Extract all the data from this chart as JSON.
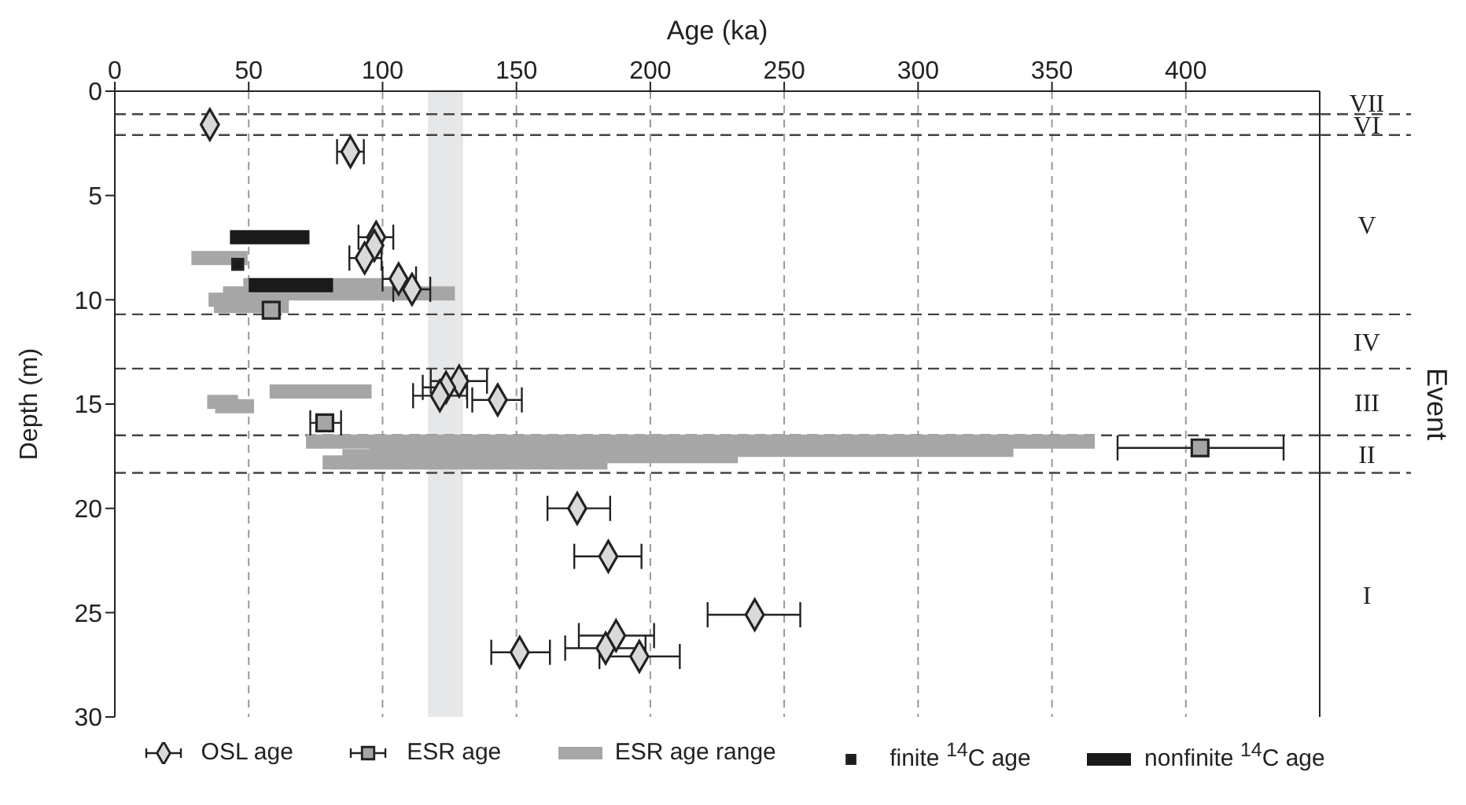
{
  "chart_data": {
    "type": "scatter",
    "xlabel": "Age (ka)",
    "ylabel": "Depth (m)",
    "y2label": "Event",
    "xlim": [
      0,
      450
    ],
    "xticks": [
      0,
      50,
      100,
      150,
      200,
      250,
      300,
      350,
      400
    ],
    "ylim": [
      30,
      0
    ],
    "yticks": [
      0,
      5,
      10,
      15,
      20,
      25,
      30
    ],
    "grid": "x",
    "legend": "bottom",
    "series": [
      {
        "name": "OSL age",
        "marker": "diamond",
        "color": "#d9d9d9",
        "x": [
          35.5,
          88,
          97.6,
          96.9,
          93.3,
          106,
          111,
          128.6,
          123.7,
          121.4,
          143,
          172.7,
          184.3,
          239,
          187.2,
          183.3,
          151.2,
          195.9
        ],
        "values": [
          1.6,
          2.9,
          7.0,
          7.4,
          8.0,
          9.0,
          9.5,
          13.9,
          14.2,
          14.6,
          14.8,
          20.0,
          22.3,
          25.1,
          26.1,
          26.7,
          26.9,
          27.1
        ],
        "xerrors": [
          null,
          [
            83,
            93
          ],
          [
            91,
            104
          ],
          null,
          [
            87.6,
            99.6
          ],
          [
            100,
            112.5
          ],
          [
            104,
            117.8
          ],
          [
            118,
            139
          ],
          [
            115,
            131.5
          ],
          [
            111.4,
            131.6
          ],
          [
            133.5,
            152
          ],
          [
            161.6,
            185
          ],
          [
            171.6,
            196.7
          ],
          [
            221.4,
            256
          ],
          [
            173.3,
            201.4
          ],
          [
            168.2,
            198.2
          ],
          [
            140.6,
            162.5
          ],
          [
            181,
            211
          ]
        ]
      },
      {
        "name": "ESR age",
        "marker": "square",
        "color": "#a6a6a6",
        "x": [
          58.4,
          78.4,
          405.3
        ],
        "values": [
          10.5,
          15.9,
          17.1
        ],
        "xerrors": [
          null,
          [
            73,
            84.5
          ],
          [
            374.5,
            436.5
          ]
        ]
      },
      {
        "name": "ESR age range",
        "type": "line",
        "color": "#a6a6a6",
        "x": [
          28.6,
          49.6
        ],
        "values": [
          8.0,
          8.0
        ]
      },
      {
        "name": "finite $^{14}$C age",
        "marker": "square",
        "color": "#1a1a1a",
        "x": [
          45.9
        ],
        "values": [
          8.3
        ]
      },
      {
        "name": "nonfinite $^{14}$C age",
        "type": "line",
        "color": "#1a1a1a",
        "x": [
          43,
          72.7
        ],
        "values": [
          7.0,
          7.0
        ]
      },
      {
        "type": "line",
        "color": "#a6a6a6",
        "x": [
          48,
          100
        ],
        "values": [
          9.3,
          9.3
        ]
      },
      {
        "type": "line",
        "color": "#a6a6a6",
        "x": [
          40.4,
          127
        ],
        "values": [
          9.7,
          9.7
        ]
      },
      {
        "type": "line",
        "color": "#a6a6a6",
        "x": [
          35,
          63
        ],
        "values": [
          10.0,
          10.0
        ]
      },
      {
        "type": "line",
        "color": "#a6a6a6",
        "x": [
          37,
          65
        ],
        "values": [
          10.3,
          10.3
        ]
      },
      {
        "type": "line",
        "color": "#a6a6a6",
        "x": [
          57.8,
          95.9
        ],
        "values": [
          14.4,
          14.4
        ]
      },
      {
        "type": "line",
        "color": "#a6a6a6",
        "x": [
          34.5,
          46
        ],
        "values": [
          14.9,
          14.9
        ]
      },
      {
        "type": "line",
        "color": "#a6a6a6",
        "x": [
          37.5,
          52
        ],
        "values": [
          15.1,
          15.1
        ]
      },
      {
        "type": "line",
        "color": "#a6a6a6",
        "x": [
          71.4,
          366
        ],
        "values": [
          16.8,
          16.8
        ]
      },
      {
        "type": "line",
        "color": "#a6a6a6",
        "x": [
          95,
          335.6
        ],
        "values": [
          17.2,
          17.2
        ]
      },
      {
        "type": "line",
        "color": "#a6a6a6",
        "x": [
          85,
          232.7
        ],
        "values": [
          17.5,
          17.5
        ]
      },
      {
        "type": "line",
        "color": "#a6a6a6",
        "x": [
          77.6,
          184
        ],
        "values": [
          17.8,
          17.8
        ]
      },
      {
        "type": "line",
        "color": "#1a1a1a",
        "x": [
          50,
          81.5
        ],
        "values": [
          9.3,
          9.3
        ]
      }
    ],
    "ref_lines": [
      {
        "axis": "y",
        "value": 1.1,
        "line_style": "dashed"
      },
      {
        "axis": "y",
        "value": 2.1,
        "line_style": "dashed"
      },
      {
        "axis": "y",
        "value": 10.7,
        "line_style": "dashed"
      },
      {
        "axis": "y",
        "value": 13.3,
        "line_style": "dashed"
      },
      {
        "axis": "y",
        "value": 16.5,
        "line_style": "dashed"
      },
      {
        "axis": "y",
        "value": 18.3,
        "line_style": "dashed"
      }
    ],
    "bands": [
      {
        "axis": "x",
        "from": 117,
        "to": 130,
        "color": "#e6e7e8"
      }
    ],
    "annotations": [
      "VII",
      "VI",
      "V",
      "IV",
      "III",
      "II",
      "I"
    ]
  }
}
